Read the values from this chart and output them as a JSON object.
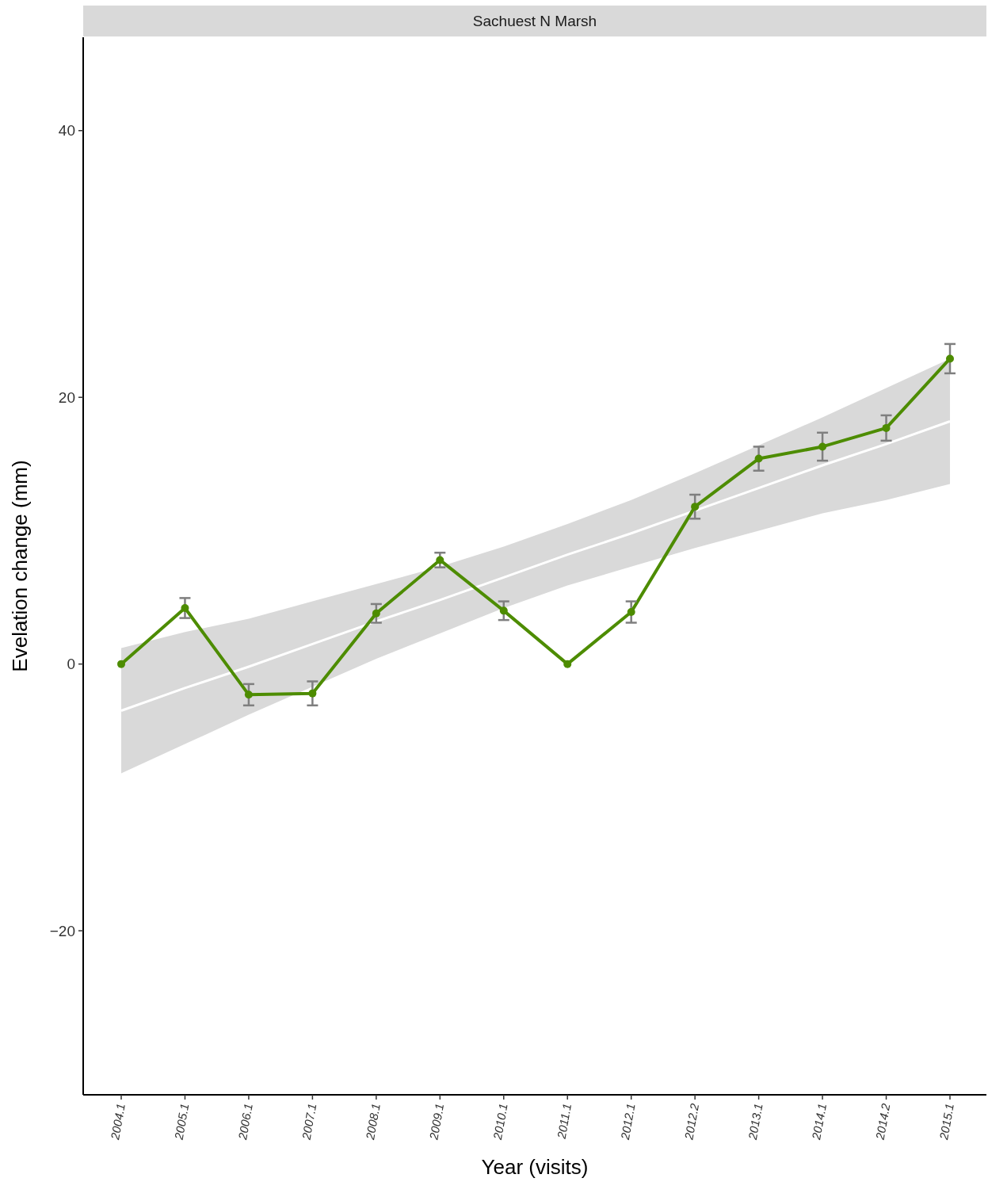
{
  "chart_data": {
    "type": "line",
    "title": "Sachuest N Marsh",
    "xlabel": "Year (visits)",
    "ylabel": "Evelation change (mm)",
    "categories": [
      "2004.1",
      "2005.1",
      "2006.1",
      "2007.1",
      "2008.1",
      "2009.1",
      "2010.1",
      "2011.1",
      "2012.1",
      "2012.2",
      "2013.1",
      "2014.1",
      "2014.2",
      "2015.1"
    ],
    "series": [
      {
        "color": "#ffffff",
        "marker": "none",
        "x": [
          "2004.1",
          "2005.1",
          "2006.1",
          "2007.1",
          "2008.1",
          "2009.1",
          "2010.1",
          "2011.1",
          "2012.1",
          "2012.2",
          "2013.1",
          "2014.1",
          "2014.2",
          "2015.1"
        ],
        "values": [
          -3.5,
          -1.8,
          -0.2,
          1.5,
          3.2,
          4.8,
          6.5,
          8.2,
          9.8,
          11.5,
          13.2,
          14.9,
          16.5,
          18.2
        ],
        "lower": [
          -8.2,
          -6.0,
          -3.8,
          -1.7,
          0.4,
          2.3,
          4.2,
          5.9,
          7.3,
          8.7,
          10.0,
          11.3,
          12.3,
          13.5
        ],
        "upper": [
          1.2,
          2.4,
          3.4,
          4.7,
          6.0,
          7.3,
          8.8,
          10.5,
          12.3,
          14.3,
          16.4,
          18.5,
          20.7,
          22.9
        ]
      },
      {
        "color": "#4d8c00",
        "marker": "circle",
        "values": [
          0,
          4.2,
          -2.3,
          -2.2,
          3.8,
          7.8,
          4.0,
          0,
          3.9,
          11.8,
          15.4,
          16.3,
          17.7,
          22.9
        ],
        "errors": [
          null,
          0.75,
          0.8,
          0.9,
          0.7,
          0.55,
          0.7,
          null,
          0.8,
          0.9,
          0.9,
          1.05,
          0.95,
          1.1
        ]
      }
    ],
    "ylim": [
      -32.3,
      47
    ],
    "yticks": [
      -20,
      0,
      20,
      40
    ],
    "grid": false,
    "line_style": "solid"
  }
}
